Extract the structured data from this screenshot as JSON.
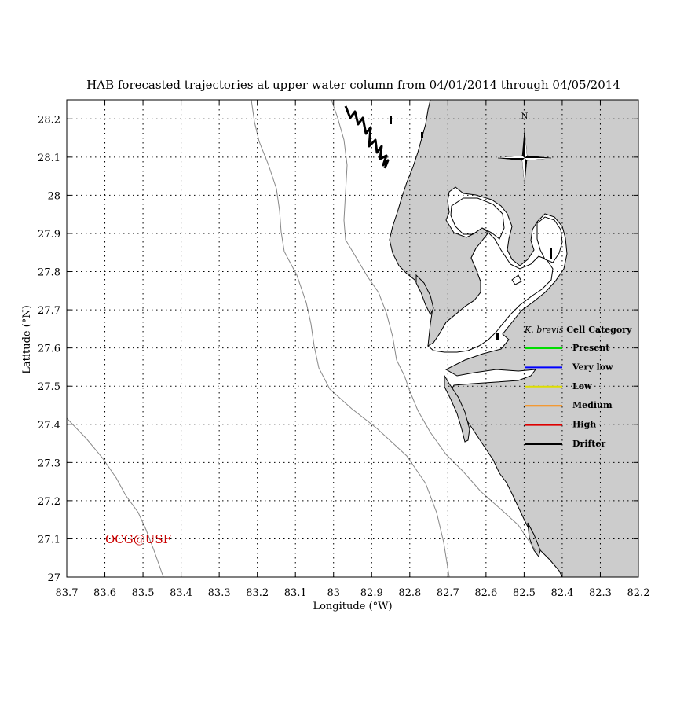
{
  "title": "HAB forecasted trajectories at upper water column from 04/01/2014 through 04/05/2014",
  "axes": {
    "xlabel": "Longitude (°W)",
    "ylabel": "Latitude (°N)",
    "x_ticks": [
      "83.7",
      "83.6",
      "83.5",
      "83.4",
      "83.3",
      "83.2",
      "83.1",
      "83",
      "82.9",
      "82.8",
      "82.7",
      "82.6",
      "82.5",
      "82.4",
      "82.3",
      "82.2"
    ],
    "y_ticks": [
      "28.2",
      "28.1",
      "28",
      "27.9",
      "27.8",
      "27.7",
      "27.6",
      "27.5",
      "27.4",
      "27.3",
      "27.2",
      "27.1",
      "27"
    ],
    "xlim": [
      83.7,
      82.2
    ],
    "ylim": [
      27.0,
      28.25
    ],
    "grid": true
  },
  "compass": {
    "label": "N"
  },
  "legend": {
    "title_italic": "K. brevis",
    "title_rest": "Cell Category",
    "items": [
      {
        "label": "Present",
        "color": "#00dd00"
      },
      {
        "label": "Very low",
        "color": "#0000ff"
      },
      {
        "label": "Low",
        "color": "#dddd00"
      },
      {
        "label": "Medium",
        "color": "#ff8800"
      },
      {
        "label": "High",
        "color": "#dd0000"
      },
      {
        "label": "Drifter",
        "color": "#000000"
      }
    ]
  },
  "watermark": "OCG@USF",
  "colors": {
    "land": "#cccccc",
    "water": "#ffffff",
    "isobath": "#888888",
    "watermark": "#cc0000"
  }
}
